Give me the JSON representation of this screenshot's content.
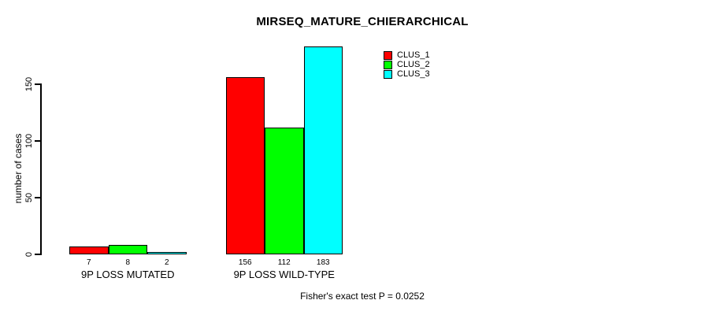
{
  "chart_data": {
    "type": "bar",
    "title": "MIRSEQ_MATURE_CHIERARCHICAL",
    "xlabel": "",
    "ylabel": "number of cases",
    "categories": [
      "9P LOSS MUTATED",
      "9P LOSS WILD-TYPE"
    ],
    "series": [
      {
        "name": "CLUS_1",
        "color": "#FF0000",
        "values": [
          7,
          156
        ]
      },
      {
        "name": "CLUS_2",
        "color": "#00FF00",
        "values": [
          8,
          112
        ]
      },
      {
        "name": "CLUS_3",
        "color": "#00FFFF",
        "values": [
          2,
          183
        ]
      }
    ],
    "bar_value_labels": [
      [
        "7",
        "8",
        "2"
      ],
      [
        "156",
        "112",
        "183"
      ]
    ],
    "yticks": [
      "0",
      "50",
      "100",
      "150"
    ],
    "ytick_values": [
      0,
      50,
      100,
      150
    ],
    "ylim": [
      0,
      185
    ],
    "grid": false,
    "legend_position": "top-right",
    "annotation": "Fisher's exact test P = 0.0252",
    "axis_color": "#000000",
    "background_color": "#FFFFFF"
  }
}
